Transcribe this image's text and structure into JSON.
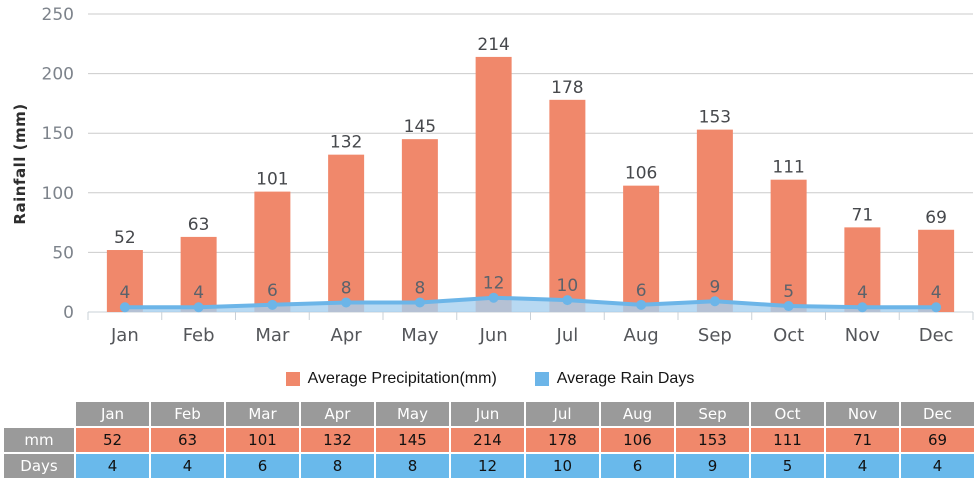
{
  "chart_data": {
    "type": "bar",
    "categories": [
      "Jan",
      "Feb",
      "Mar",
      "Apr",
      "May",
      "Jun",
      "Jul",
      "Aug",
      "Sep",
      "Oct",
      "Nov",
      "Dec"
    ],
    "series": [
      {
        "name": "Average Precipitation(mm)",
        "type": "bar",
        "values": [
          52,
          63,
          101,
          132,
          145,
          214,
          178,
          106,
          153,
          111,
          71,
          69
        ],
        "color": "#F0886B"
      },
      {
        "name": "Average Rain Days",
        "type": "area",
        "values": [
          4,
          4,
          6,
          8,
          8,
          12,
          10,
          6,
          9,
          5,
          4,
          4
        ],
        "color": "#6CB5E8",
        "fill": "#A6CFEF"
      }
    ],
    "title": "",
    "xlabel": "",
    "ylabel": "Rainfall (mm)",
    "ylim": [
      0,
      250
    ],
    "yticks": [
      0,
      50,
      100,
      150,
      200,
      250
    ],
    "grid": true,
    "legend_position": "bottom"
  },
  "table": {
    "corner": "",
    "months": [
      "Jan",
      "Feb",
      "Mar",
      "Apr",
      "May",
      "Jun",
      "Jul",
      "Aug",
      "Sep",
      "Oct",
      "Nov",
      "Dec"
    ],
    "rows": [
      {
        "label": "mm",
        "values": [
          52,
          63,
          101,
          132,
          145,
          214,
          178,
          106,
          153,
          111,
          71,
          69
        ],
        "color": "#F0886B"
      },
      {
        "label": "Days",
        "values": [
          4,
          4,
          6,
          8,
          8,
          12,
          10,
          6,
          9,
          5,
          4,
          4
        ],
        "color": "#69B9EB"
      }
    ],
    "header_color": "#9A9A9A"
  },
  "colors": {
    "grid": "#CBCBCB",
    "axis": "#C9D0D7",
    "background": "#FFFFFF"
  }
}
